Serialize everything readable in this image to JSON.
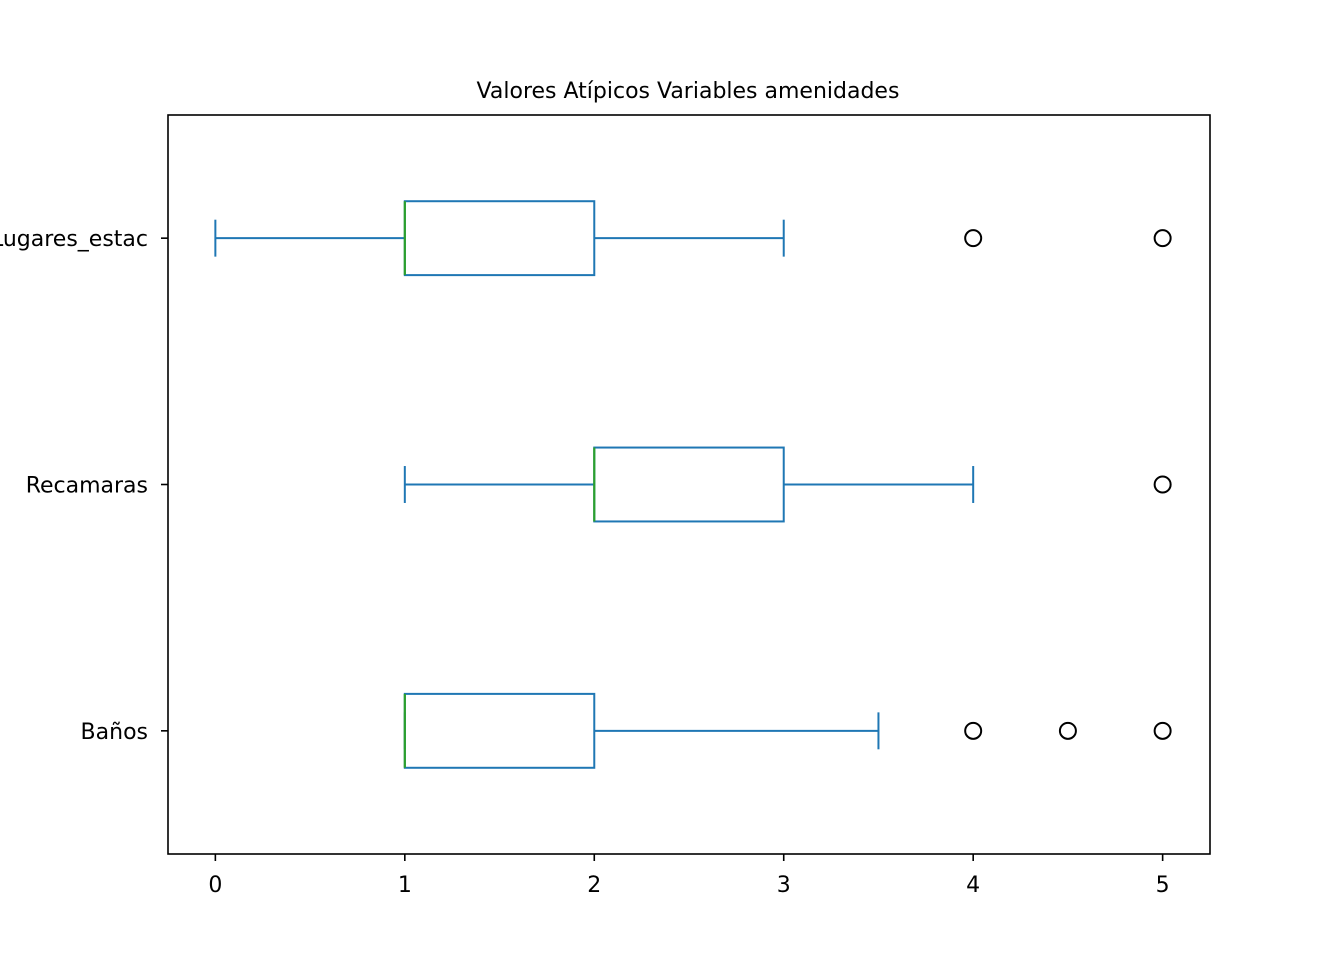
{
  "chart_data": {
    "type": "boxplot",
    "orientation": "horizontal",
    "title": "Valores Atípicos Variables amenidades",
    "xlim": [
      -0.25,
      5.25
    ],
    "x_ticks": [
      0,
      1,
      2,
      3,
      4,
      5
    ],
    "grid": false,
    "legend": "none",
    "colors": {
      "box": "#1f77b4",
      "median": "#2ca02c",
      "flier": "#000000"
    },
    "series": [
      {
        "name": "Baños",
        "whisker_low": 1,
        "q1": 1,
        "median": 1,
        "q3": 2,
        "whisker_high": 3.5,
        "outliers": [
          4,
          4.5,
          5
        ]
      },
      {
        "name": "Recamaras",
        "whisker_low": 1,
        "q1": 2,
        "median": 2,
        "q3": 3,
        "whisker_high": 4,
        "outliers": [
          5
        ]
      },
      {
        "name": "Lugares_estac",
        "whisker_low": 0,
        "q1": 1,
        "median": 1,
        "q3": 2,
        "whisker_high": 3,
        "outliers": [
          4,
          5
        ]
      }
    ]
  }
}
